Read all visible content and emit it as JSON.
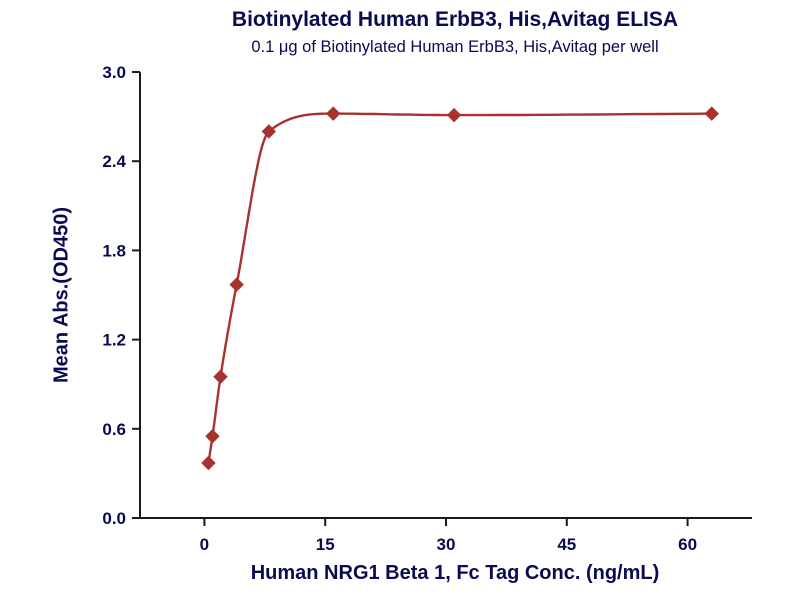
{
  "chart_data": {
    "type": "scatter",
    "title": "Biotinylated Human ErbB3, His,Avitag ELISA",
    "subtitle": "0.1 μg of Biotinylated Human ErbB3, His,Avitag per well",
    "xlabel": "Human NRG1 Beta 1, Fc Tag Conc. (ng/mL)",
    "ylabel": "Mean Abs.(OD450)",
    "x": [
      0.5,
      1,
      2,
      4,
      8,
      16,
      31,
      63
    ],
    "y": [
      0.37,
      0.55,
      0.95,
      1.57,
      2.6,
      2.72,
      2.71,
      2.72
    ],
    "curve": "4PL-style smooth fit through points",
    "xlim": [
      -8,
      68
    ],
    "ylim": [
      0,
      3.0
    ],
    "x_ticks": [
      "0",
      "15",
      "30",
      "45",
      "60"
    ],
    "y_ticks": [
      "0.0",
      "0.6",
      "1.2",
      "1.8",
      "2.4",
      "3.0"
    ],
    "marker": "diamond",
    "series_color": "#a8322e",
    "text_color": "#0a0a52",
    "axis_color": "#1a1a1a",
    "grid": false,
    "legend": "none"
  }
}
